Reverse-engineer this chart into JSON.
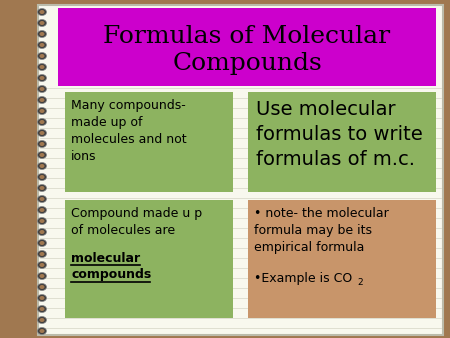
{
  "title": "Formulas of Molecular\nCompounds",
  "title_bg": "#CC00CC",
  "title_color": "#000000",
  "slide_bg": "#A07850",
  "notebook_bg": "#F8F8EE",
  "lines_color": "#CCCCBB",
  "spiral_dark": "#333333",
  "spiral_light": "#A07850",
  "box1_text": "Many compounds-\nmade up of\nmolecules and not\nions",
  "box1_bg": "#8DB360",
  "box1_color": "#000000",
  "box2_text": "Use molecular\nformulas to write\nformulas of m.c.",
  "box2_bg": "#8DB360",
  "box2_color": "#000000",
  "box3_line1": "Compound made u p\nof molecules are",
  "box3_underline1": "molecular",
  "box3_underline2": "compounds",
  "box3_bg": "#8DB360",
  "box3_color": "#000000",
  "box4_line1": "• note- the molecular\nformula may be its\nempirical formula",
  "box4_line2": "•Example is CO",
  "box4_sub": "2",
  "box4_bg": "#C8956A",
  "box4_color": "#000000",
  "figsize": [
    4.5,
    3.38
  ],
  "dpi": 100
}
